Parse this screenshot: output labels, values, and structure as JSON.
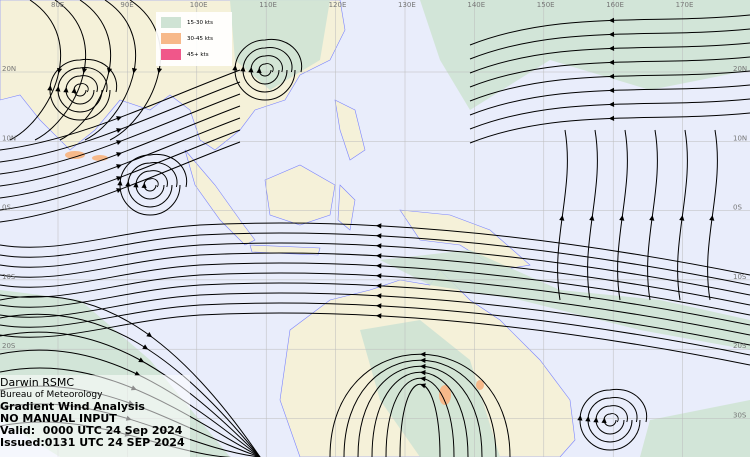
{
  "map": {
    "colors": {
      "ocean": "#e9edfb",
      "land": "#f5f1d9",
      "coast": "#7b84ff",
      "band_15_30": "#cfe3d4",
      "band_30_45": "#f7b98a",
      "band_45_plus": "#f0578a",
      "streamline": "#000000"
    },
    "longitude_labels": [
      "80E",
      "90E",
      "100E",
      "110E",
      "120E",
      "130E",
      "140E",
      "150E",
      "160E",
      "170E"
    ],
    "latitude_labels": [
      "20N",
      "10N",
      "0S",
      "10S",
      "20S",
      "30S"
    ]
  },
  "legend": {
    "items": [
      {
        "label": "15-30 kts",
        "color": "#cfe3d4"
      },
      {
        "label": "30-45 kts",
        "color": "#f7b98a"
      },
      {
        "label": "45+ kts",
        "color": "#f0578a"
      }
    ]
  },
  "info": {
    "centre": "Darwin RSMC",
    "agency": "Bureau of Meteorology",
    "product": "Gradient Wind Analysis",
    "note": "NO MANUAL INPUT",
    "valid": "Valid:  0000 UTC 24 Sep 2024",
    "issued": "Issued:0131 UTC 24 SEP 2024"
  }
}
